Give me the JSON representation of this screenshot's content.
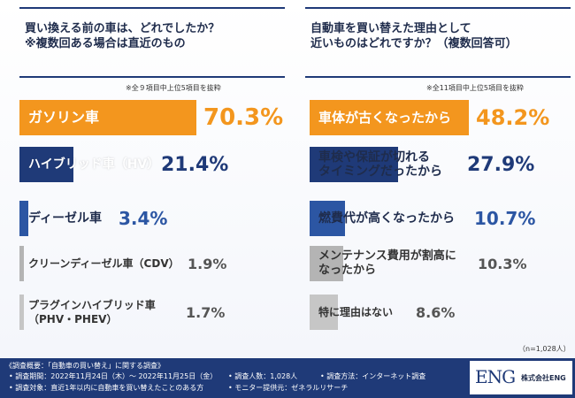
{
  "chart_data": [
    {
      "type": "bar",
      "title": "買い換える前の車は、どれでしたか？\n※複数回ある場合は直近のもの",
      "note": "※全９項目中上位5項目を抜粋",
      "unit": "%",
      "xlim": [
        0,
        100
      ],
      "categories": [
        "ガソリン車",
        "ハイブリッド車（HV）",
        "ディーゼル車",
        "クリーンディーゼル車（CDV）",
        "プラグインハイブリッド車\n（PHV・PHEV）"
      ],
      "values": [
        70.3,
        21.4,
        3.4,
        1.9,
        1.7
      ],
      "labels": [
        "70.3%",
        "21.4%",
        "3.4%",
        "1.9%",
        "1.7%"
      ],
      "colors": [
        "#f3961e",
        "#1f3a78",
        "#2c56a3",
        "#b4b4b4",
        "#c6c6c6"
      ],
      "accents": [
        "#f3961e",
        "#1f3a78",
        "#2c56a3",
        "#b4b4b4",
        "#c6c6c6"
      ],
      "label_colors": [
        "#ffffff",
        "#ffffff",
        "#1f2c4c",
        "#333333",
        "#333333"
      ],
      "pct_colors": [
        "#f3961e",
        "#1f3a78",
        "#2c56a3",
        "#555555",
        "#555555"
      ]
    },
    {
      "type": "bar",
      "title": "自動車を買い替えた理由として\n近いものはどれですか？（複数回答可）",
      "note": "※全11項目中上位5項目を抜粋",
      "unit": "%",
      "xlim": [
        0,
        100
      ],
      "categories": [
        "車体が古くなったから",
        "車検や保証が切れる\nタイミングだったから",
        "燃費代が高くなったから",
        "メンテナンス費用が割高に\nなったから",
        "特に理由はない"
      ],
      "values": [
        48.2,
        27.9,
        10.7,
        10.3,
        8.6
      ],
      "labels": [
        "48.2%",
        "27.9%",
        "10.7%",
        "10.3%",
        "8.6%"
      ],
      "colors": [
        "#f3961e",
        "#1f3a78",
        "#2c56a3",
        "#b4b4b4",
        "#c6c6c6"
      ],
      "accents": [
        "#f3961e",
        "#1f3a78",
        "#2c56a3",
        "#b4b4b4",
        "#c6c6c6"
      ],
      "label_colors": [
        "#ffffff",
        "#1f2c4c",
        "#1f2c4c",
        "#333333",
        "#333333"
      ],
      "pct_colors": [
        "#f3961e",
        "#1f3a78",
        "#2c56a3",
        "#555555",
        "#555555"
      ]
    }
  ],
  "sample_size": "（n=1,028人）",
  "footer": {
    "title": "《調査概要：「自動車の買い替え」に関する調査》",
    "period": "• 調査期間：2022年11月24日（木）～ 2022年11月25日（金）",
    "target": "• 調査対象：直近1年以内に自動車を買い替えたことのある方",
    "count": "• 調査人数：1,028人",
    "method": "• 調査方法：インターネット調査",
    "provider": "• モニター提供元：ゼネラルリサーチ",
    "logo": "ENG",
    "company": "株式会社ENG"
  }
}
